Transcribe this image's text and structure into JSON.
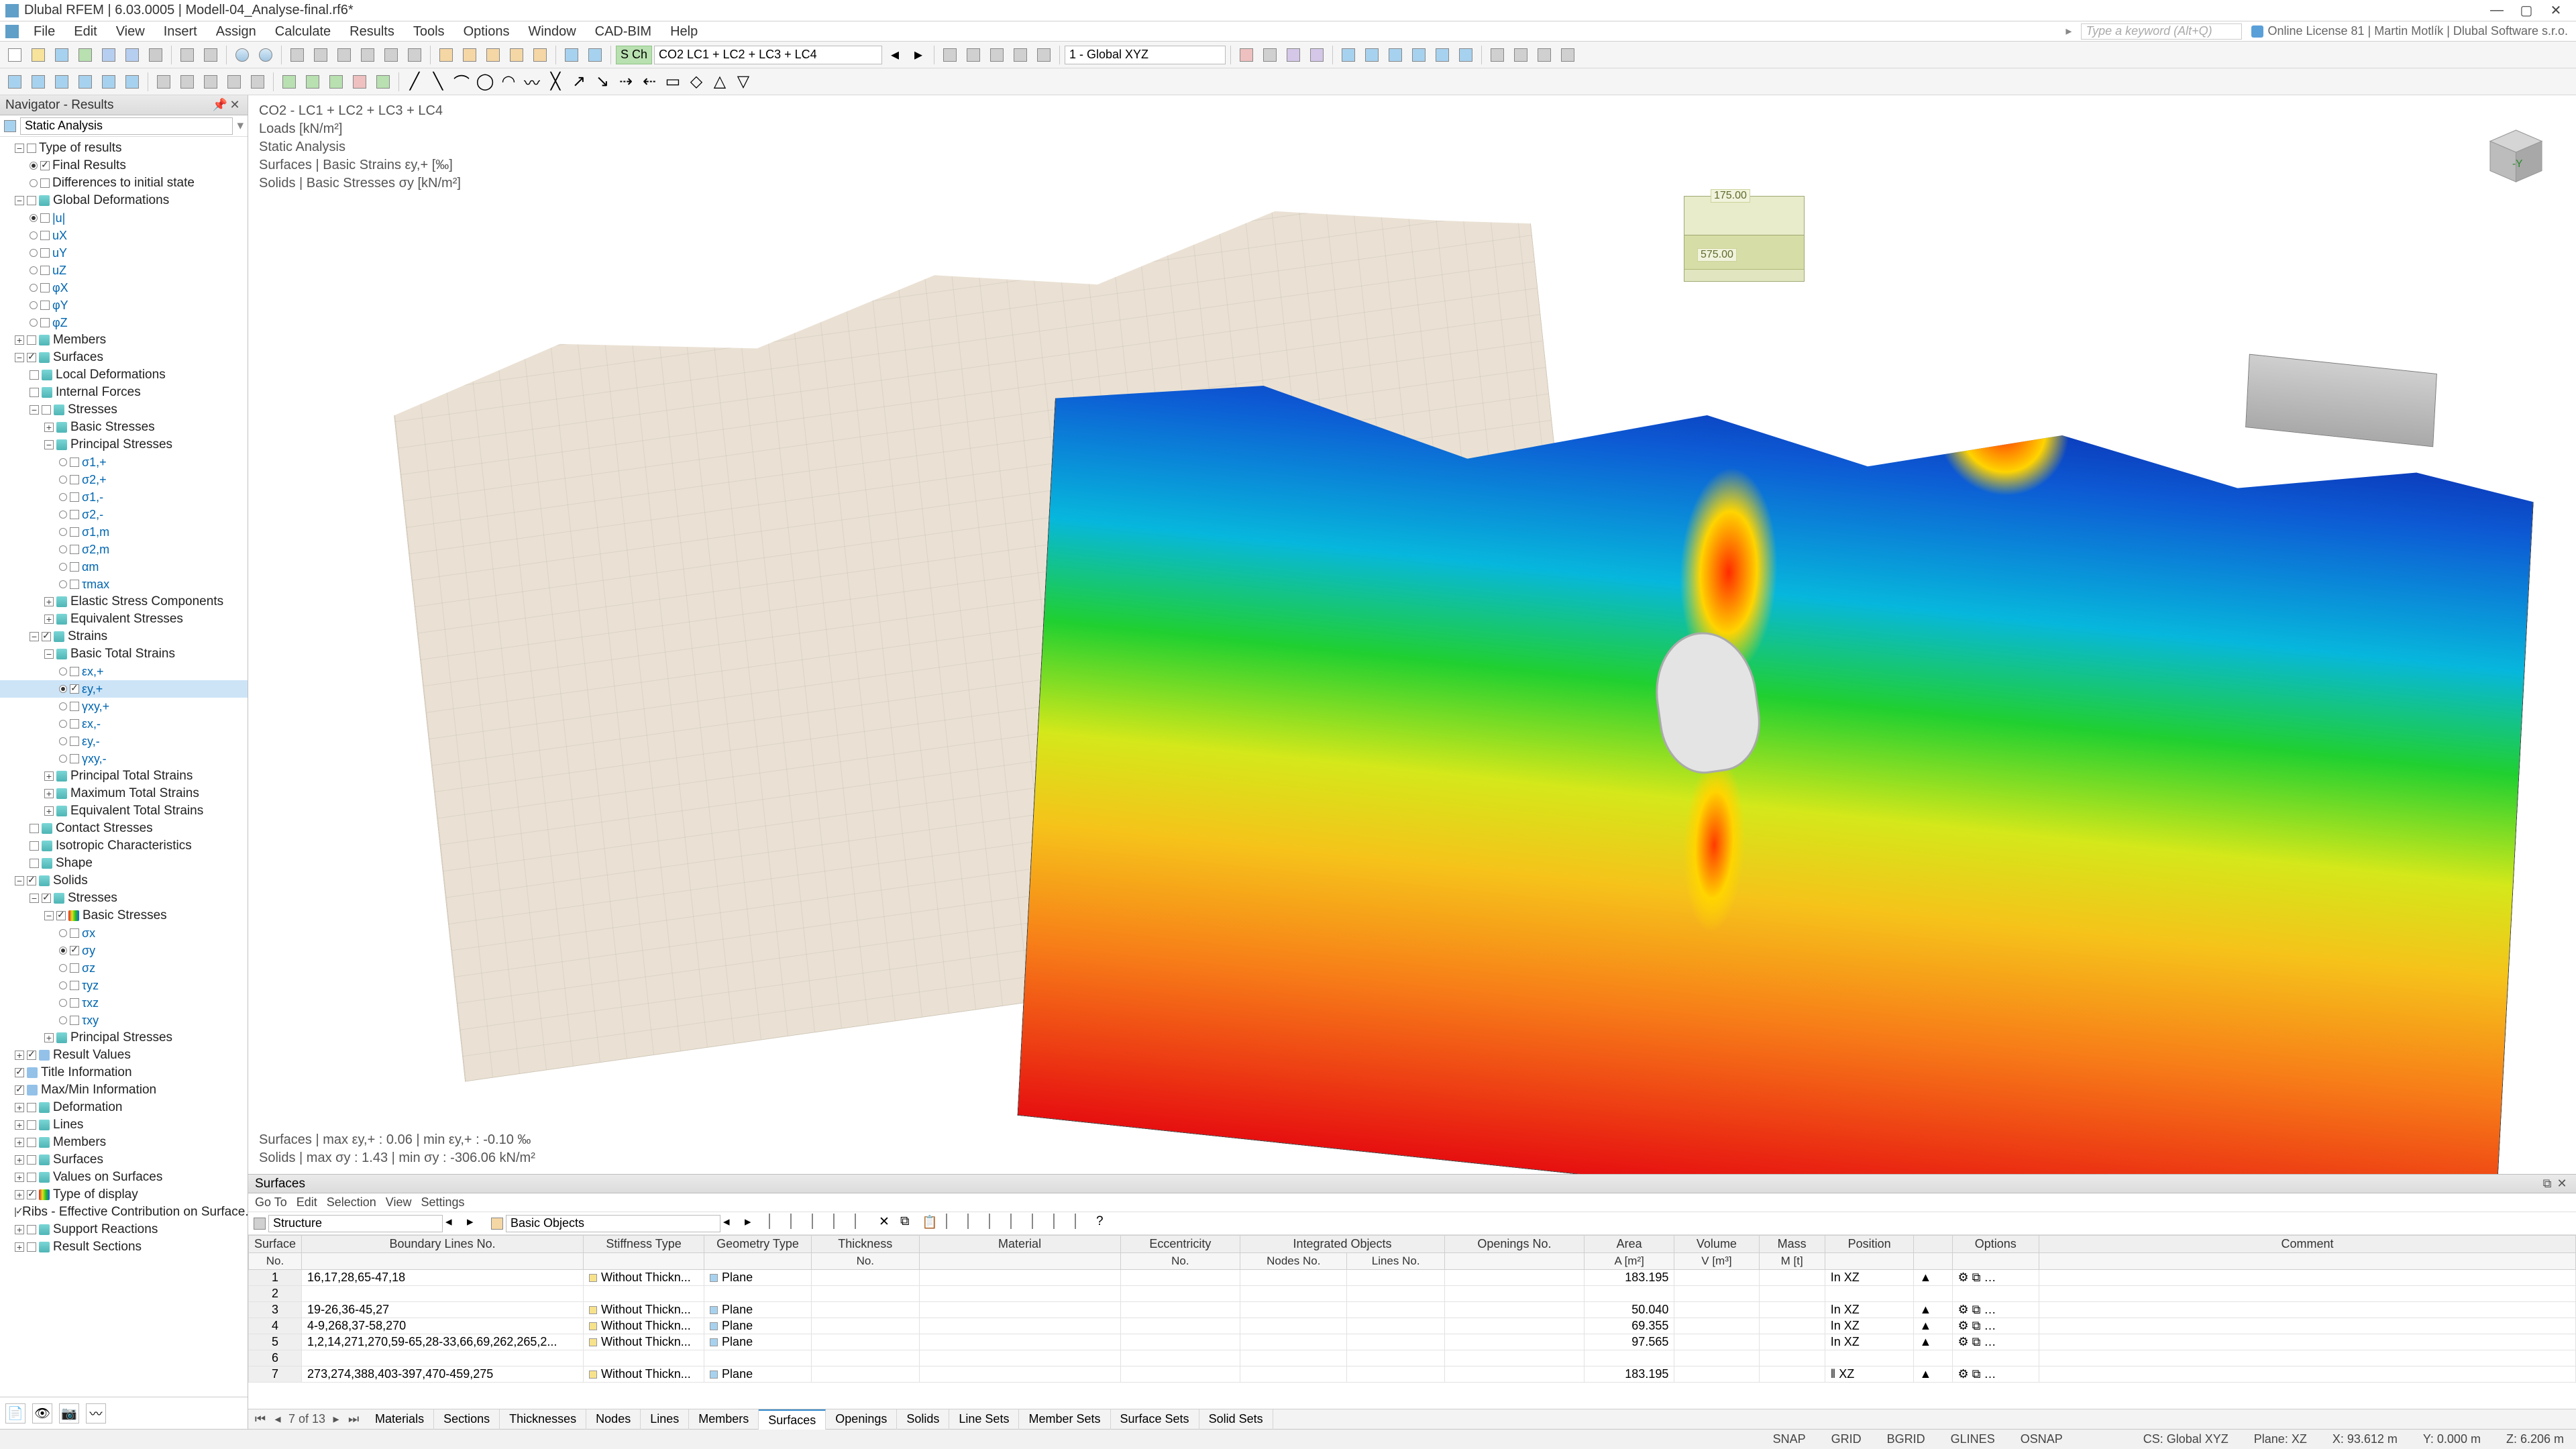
{
  "app": {
    "title": "Dlubal RFEM | 6.03.0005 | Modell-04_Analyse-final.rf6*",
    "search_placeholder": "Type a keyword (Alt+Q)",
    "license": "Online License 81 | Martin Motlík | Dlubal Software s.r.o."
  },
  "menu": [
    "File",
    "Edit",
    "View",
    "Insert",
    "Assign",
    "Calculate",
    "Results",
    "Tools",
    "Options",
    "Window",
    "CAD-BIM",
    "Help"
  ],
  "toolbar_combo": {
    "situation_tag": "S Ch",
    "situation": "CO2   LC1 + LC2 + LC3 + LC4",
    "view": "1 - Global XYZ"
  },
  "navigator": {
    "title": "Navigator - Results",
    "combo": "Static Analysis",
    "nodes": {
      "type_of_results": "Type of results",
      "final_results": "Final Results",
      "diff_initial": "Differences to initial state",
      "global_def": "Global Deformations",
      "gd_items": [
        "|u|",
        "uX",
        "uY",
        "uZ",
        "φX",
        "φY",
        "φZ"
      ],
      "members": "Members",
      "surfaces": "Surfaces",
      "local_def": "Local Deformations",
      "internal_forces": "Internal Forces",
      "stresses": "Stresses",
      "basic_stresses": "Basic Stresses",
      "principal_stresses": "Principal Stresses",
      "ps_items": [
        "σ1,+",
        "σ2,+",
        "σ1,-",
        "σ2,-",
        "σ1,m",
        "σ2,m",
        "αm",
        "τmax"
      ],
      "elastic_stress": "Elastic Stress Components",
      "equiv_stresses": "Equivalent Stresses",
      "strains": "Strains",
      "basic_total_strains": "Basic Total Strains",
      "bts_items": [
        "εx,+",
        "εy,+",
        "γxy,+",
        "εx,-",
        "εy,-",
        "γxy,-"
      ],
      "principal_total_strains": "Principal Total Strains",
      "max_total_strains": "Maximum Total Strains",
      "equiv_total_strains": "Equivalent Total Strains",
      "contact_stresses": "Contact Stresses",
      "isotropic": "Isotropic Characteristics",
      "shape": "Shape",
      "solids": "Solids",
      "sol_stresses": "Stresses",
      "sol_basic": "Basic Stresses",
      "sbs_items": [
        "σx",
        "σy",
        "σz",
        "τyz",
        "τxz",
        "τxy"
      ],
      "sol_principal": "Principal Stresses",
      "result_values": "Result Values",
      "title_information": "Title Information",
      "maxmin_information": "Max/Min Information",
      "deformation": "Deformation",
      "lines": "Lines",
      "members2": "Members",
      "surfaces2": "Surfaces",
      "values_on_surfaces": "Values on Surfaces",
      "type_of_display": "Type of display",
      "ribs": "Ribs - Effective Contribution on Surface...",
      "support_reactions": "Support Reactions",
      "result_sections": "Result Sections"
    }
  },
  "viewport": {
    "lines": [
      "CO2 - LC1 + LC2 + LC3 + LC4",
      "Loads [kN/m²]",
      "Static Analysis",
      "Surfaces | Basic Strains εy,+ [‰]",
      "Solids | Basic Stresses σy [kN/m²]"
    ],
    "bottom_lines": [
      "Surfaces | max εy,+ : 0.06 | min εy,+ : -0.10 ‰",
      "Solids | max σy : 1.43 | min σy : -306.06 kN/m²"
    ],
    "load_labels": [
      "175.00",
      "575.00"
    ],
    "colormap": {
      "min_color": "#0a1aa0",
      "max_color": "#e61010",
      "stops": [
        "#0a1aa0",
        "#0d5ad4",
        "#07b7dc",
        "#20d030",
        "#d4e81a",
        "#f6c21a",
        "#f77d18",
        "#e61010"
      ]
    }
  },
  "tables": {
    "title": "Surfaces",
    "menu": [
      "Go To",
      "Edit",
      "Selection",
      "View",
      "Settings"
    ],
    "structure_combo": "Structure",
    "basic_combo": "Basic Objects",
    "pager": "7 of 13",
    "tabs": [
      "Materials",
      "Sections",
      "Thicknesses",
      "Nodes",
      "Lines",
      "Members",
      "Surfaces",
      "Openings",
      "Solids",
      "Line Sets",
      "Member Sets",
      "Surface Sets",
      "Solid Sets"
    ],
    "active_tab": "Surfaces",
    "columns_top": [
      "Surface",
      "Boundary Lines No.",
      "Stiffness Type",
      "Geometry Type",
      "Thickness",
      "Material",
      "Eccentricity",
      "Integrated Objects",
      "",
      "Openings No.",
      "Area",
      "Volume",
      "Mass",
      "Position",
      "",
      "Options",
      "Comment"
    ],
    "columns_sub": [
      "No.",
      "",
      "",
      "",
      "No.",
      "",
      "No.",
      "Nodes No.",
      "Lines No.",
      "",
      "A [m²]",
      "V [m³]",
      "M [t]",
      "",
      "",
      "",
      ""
    ],
    "rows": [
      {
        "no": "1",
        "bl": "16,17,28,65-47,18",
        "st": "Without Thickn...",
        "gt": "Plane",
        "area": "183.195",
        "pos": "In XZ"
      },
      {
        "no": "2",
        "bl": "",
        "st": "",
        "gt": "",
        "area": "",
        "pos": ""
      },
      {
        "no": "3",
        "bl": "19-26,36-45,27",
        "st": "Without Thickn...",
        "gt": "Plane",
        "area": "50.040",
        "pos": "In XZ"
      },
      {
        "no": "4",
        "bl": "4-9,268,37-58,270",
        "st": "Without Thickn...",
        "gt": "Plane",
        "area": "69.355",
        "pos": "In XZ"
      },
      {
        "no": "5",
        "bl": "1,2,14,271,270,59-65,28-33,66,69,262,265,2...",
        "st": "Without Thickn...",
        "gt": "Plane",
        "area": "97.565",
        "pos": "In XZ"
      },
      {
        "no": "6",
        "bl": "",
        "st": "",
        "gt": "",
        "area": "",
        "pos": ""
      },
      {
        "no": "7",
        "bl": "273,274,388,403-397,470-459,275",
        "st": "Without Thickn...",
        "gt": "Plane",
        "area": "183.195",
        "pos": "‖ XZ"
      }
    ]
  },
  "statusbar": {
    "snap": "SNAP",
    "grid": "GRID",
    "bgrid": "BGRID",
    "glines": "GLINES",
    "osnap": "OSNAP",
    "cs": "CS: Global XYZ",
    "plane": "Plane: XZ",
    "x": "X: 93.612 m",
    "y": "Y: 0.000 m",
    "z": "Z: 6.206 m"
  }
}
